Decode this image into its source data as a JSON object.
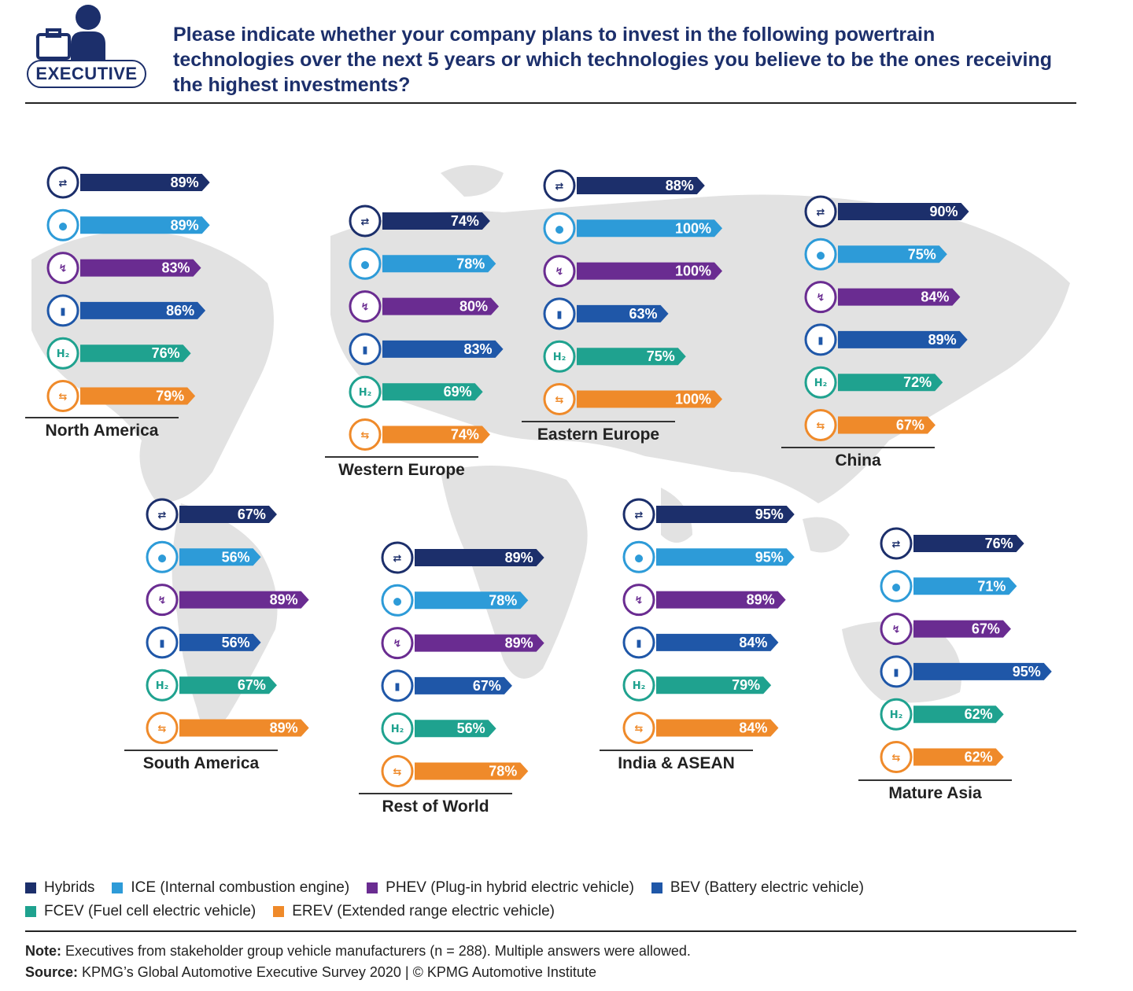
{
  "header": {
    "badge_label": "EXECUTIVE",
    "question": "Please indicate whether your company plans to invest in the following powertrain technologies over the next 5 years or which technologies you believe to be the ones receiving the highest investments?"
  },
  "legend": {
    "items": [
      {
        "label": "Hybrids",
        "color": "#1c2f6b"
      },
      {
        "label": "ICE (Internal combustion engine)",
        "color": "#2d9bd8"
      },
      {
        "label": "PHEV (Plug-in hybrid electric vehicle)",
        "color": "#6a2c91"
      },
      {
        "label": "BEV (Battery electric vehicle)",
        "color": "#1f57a8"
      },
      {
        "label": "FCEV (Fuel cell electric vehicle)",
        "color": "#1fa28f"
      },
      {
        "label": "EREV (Extended range electric vehicle)",
        "color": "#ef8a2a"
      }
    ]
  },
  "note": {
    "note_label": "Note:",
    "note_text": "Executives from stakeholder group vehicle manufacturers (n = 288). Multiple answers were allowed.",
    "source_label": "Source:",
    "source_text": "KPMG’s Global Automotive Executive Survey 2020 | © KPMG Automotive Institute"
  },
  "chart_data": {
    "type": "bar",
    "categories": [
      "Hybrids",
      "ICE",
      "PHEV",
      "BEV",
      "FCEV",
      "EREV"
    ],
    "value_unit": "%",
    "series": [
      {
        "name": "North America",
        "values": [
          89,
          89,
          83,
          86,
          76,
          79
        ]
      },
      {
        "name": "Western Europe",
        "values": [
          74,
          78,
          80,
          83,
          69,
          74
        ]
      },
      {
        "name": "Eastern Europe",
        "values": [
          88,
          100,
          100,
          63,
          75,
          100
        ]
      },
      {
        "name": "China",
        "values": [
          90,
          75,
          84,
          89,
          72,
          67
        ]
      },
      {
        "name": "South America",
        "values": [
          67,
          56,
          89,
          56,
          67,
          89
        ]
      },
      {
        "name": "Rest of World",
        "values": [
          89,
          78,
          89,
          67,
          56,
          78
        ]
      },
      {
        "name": "India & ASEAN",
        "values": [
          95,
          95,
          89,
          84,
          79,
          84
        ]
      },
      {
        "name": "Mature Asia",
        "values": [
          76,
          71,
          67,
          95,
          62,
          62
        ]
      }
    ]
  }
}
